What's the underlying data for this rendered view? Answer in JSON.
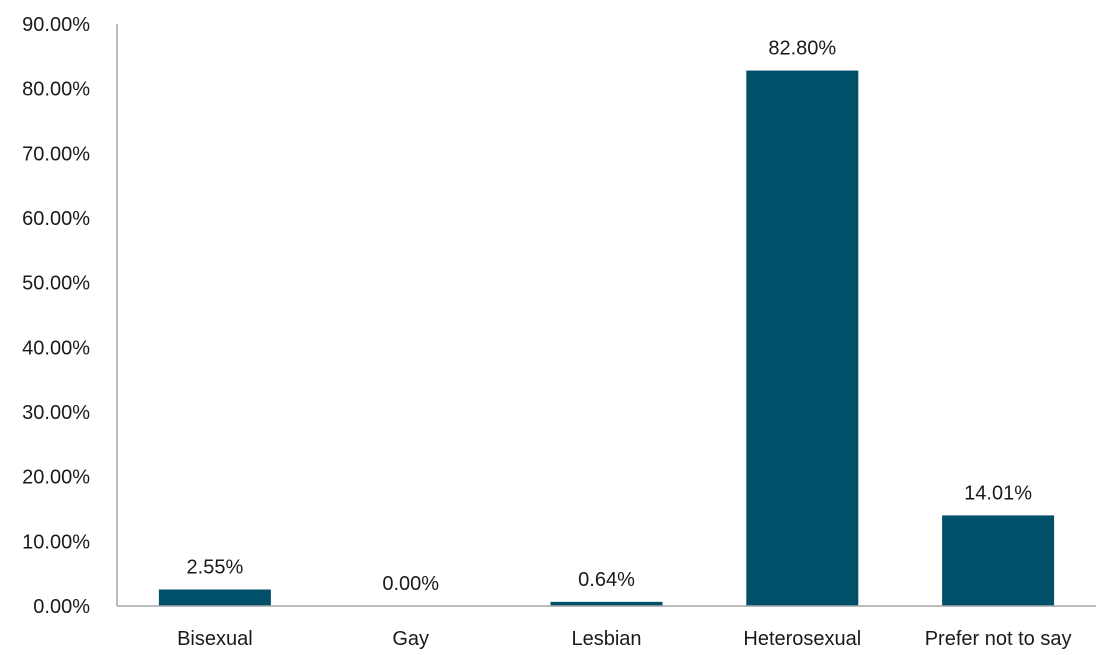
{
  "chart_data": {
    "type": "bar",
    "categories": [
      "Bisexual",
      "Gay",
      "Lesbian",
      "Heterosexual",
      "Prefer not to say"
    ],
    "values": [
      2.55,
      0.0,
      0.64,
      82.8,
      14.01
    ],
    "data_labels": [
      "2.55%",
      "0.00%",
      "0.64%",
      "82.80%",
      "14.01%"
    ],
    "title": "",
    "xlabel": "",
    "ylabel": "",
    "ylim": [
      0,
      90
    ],
    "yticks": [
      0,
      10,
      20,
      30,
      40,
      50,
      60,
      70,
      80,
      90
    ],
    "ytick_labels": [
      "0.00%",
      "10.00%",
      "20.00%",
      "30.00%",
      "40.00%",
      "50.00%",
      "60.00%",
      "70.00%",
      "80.00%",
      "90.00%"
    ],
    "grid": false,
    "legend": "none",
    "bar_color": "#00506a"
  }
}
